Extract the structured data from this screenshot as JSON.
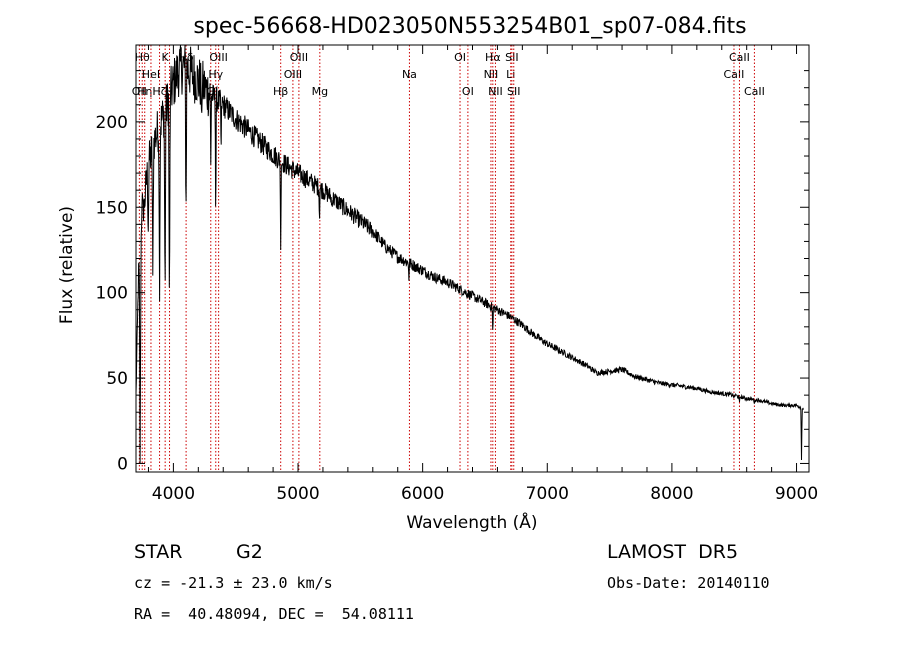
{
  "chart_data": {
    "type": "line",
    "title": "spec-56668-HD023050N553254B01_sp07-084.fits",
    "xlabel": "Wavelength (Å)",
    "ylabel": "Flux (relative)",
    "xlim": [
      3700,
      9100
    ],
    "ylim": [
      -5,
      245
    ],
    "x_ticks": [
      4000,
      5000,
      6000,
      7000,
      8000,
      9000
    ],
    "y_ticks": [
      0,
      50,
      100,
      150,
      200
    ],
    "grid": false,
    "line_color": "#000000",
    "marker_color": "#cc0000",
    "continuum": [
      [
        3700,
        40
      ],
      [
        3720,
        110
      ],
      [
        3760,
        150
      ],
      [
        3800,
        175
      ],
      [
        3850,
        190
      ],
      [
        3900,
        200
      ],
      [
        3950,
        210
      ],
      [
        4000,
        222
      ],
      [
        4050,
        232
      ],
      [
        4100,
        232
      ],
      [
        4150,
        228
      ],
      [
        4200,
        224
      ],
      [
        4250,
        220
      ],
      [
        4300,
        216
      ],
      [
        4400,
        210
      ],
      [
        4500,
        202
      ],
      [
        4600,
        195
      ],
      [
        4700,
        188
      ],
      [
        4800,
        181
      ],
      [
        4900,
        175
      ],
      [
        5000,
        170
      ],
      [
        5100,
        165
      ],
      [
        5200,
        160
      ],
      [
        5300,
        154
      ],
      [
        5400,
        148
      ],
      [
        5500,
        142
      ],
      [
        5600,
        136
      ],
      [
        5700,
        127
      ],
      [
        5800,
        121
      ],
      [
        5900,
        117
      ],
      [
        6000,
        113
      ],
      [
        6100,
        109
      ],
      [
        6200,
        106
      ],
      [
        6300,
        102
      ],
      [
        6400,
        98
      ],
      [
        6500,
        94
      ],
      [
        6600,
        90
      ],
      [
        6700,
        86
      ],
      [
        6800,
        81
      ],
      [
        6900,
        75
      ],
      [
        7000,
        70
      ],
      [
        7100,
        66
      ],
      [
        7200,
        62
      ],
      [
        7300,
        58
      ],
      [
        7400,
        53
      ],
      [
        7500,
        54
      ],
      [
        7600,
        55
      ],
      [
        7700,
        51
      ],
      [
        7800,
        49
      ],
      [
        7900,
        47
      ],
      [
        8000,
        46
      ],
      [
        8100,
        45
      ],
      [
        8200,
        44
      ],
      [
        8300,
        42
      ],
      [
        8400,
        41
      ],
      [
        8500,
        40
      ],
      [
        8600,
        38
      ],
      [
        8700,
        37
      ],
      [
        8800,
        35
      ],
      [
        8900,
        34
      ],
      [
        9000,
        34
      ],
      [
        9060,
        32
      ]
    ],
    "absorption_dips": [
      [
        3733,
        0
      ],
      [
        3750,
        160
      ],
      [
        3770,
        150
      ],
      [
        3798,
        130
      ],
      [
        3835,
        110
      ],
      [
        3889,
        95
      ],
      [
        3933,
        90
      ],
      [
        3968,
        85
      ],
      [
        4101,
        140
      ],
      [
        4226,
        200
      ],
      [
        4300,
        175
      ],
      [
        4340,
        135
      ],
      [
        4383,
        180
      ],
      [
        4861,
        125
      ],
      [
        5172,
        140
      ],
      [
        5270,
        150
      ],
      [
        5890,
        107
      ],
      [
        6563,
        75
      ],
      [
        8498,
        38
      ],
      [
        8542,
        36
      ],
      [
        8662,
        35
      ],
      [
        9040,
        2
      ]
    ],
    "line_markers": [
      {
        "wl": 3727,
        "label": "OII",
        "row": 3
      },
      {
        "wl": 3750,
        "label": "Hθ",
        "row": 1
      },
      {
        "wl": 3770,
        "label": "Hη",
        "row": 3
      },
      {
        "wl": 3820,
        "label": "HeI",
        "row": 2
      },
      {
        "wl": 3889,
        "label": "Hζ",
        "row": 3
      },
      {
        "wl": 3934,
        "label": "K",
        "row": 1
      },
      {
        "wl": 3969,
        "label": "H",
        "row": 3
      },
      {
        "wl": 4102,
        "label": "Hδ",
        "row": 1
      },
      {
        "wl": 4300,
        "label": "G",
        "row": 3
      },
      {
        "wl": 4340,
        "label": "Hγ",
        "row": 2
      },
      {
        "wl": 4363,
        "label": "OIII",
        "row": 1
      },
      {
        "wl": 4861,
        "label": "Hβ",
        "row": 3
      },
      {
        "wl": 4959,
        "label": "OIII",
        "row": 2
      },
      {
        "wl": 5007,
        "label": "OIII",
        "row": 1
      },
      {
        "wl": 5175,
        "label": "Mg",
        "row": 3
      },
      {
        "wl": 5894,
        "label": "Na",
        "row": 2
      },
      {
        "wl": 6300,
        "label": "OI",
        "row": 1
      },
      {
        "wl": 6363,
        "label": "OI",
        "row": 3
      },
      {
        "wl": 6548,
        "label": "NII",
        "row": 2
      },
      {
        "wl": 6563,
        "label": "Hα",
        "row": 1
      },
      {
        "wl": 6584,
        "label": "NII",
        "row": 3
      },
      {
        "wl": 6707,
        "label": "Li",
        "row": 2
      },
      {
        "wl": 6716,
        "label": "SII",
        "row": 1
      },
      {
        "wl": 6731,
        "label": "SII",
        "row": 3
      },
      {
        "wl": 8498,
        "label": "CaII",
        "row": 2
      },
      {
        "wl": 8542,
        "label": "CaII",
        "row": 1
      },
      {
        "wl": 8662,
        "label": "CaII",
        "row": 3
      }
    ]
  },
  "info": {
    "object_type": "STAR",
    "subclass": "G2",
    "survey": "LAMOST  DR5",
    "redshift": "cz = -21.3 ± 23.0 km/s",
    "obs_date": "Obs-Date: 20140110",
    "coords": "RA =  40.48094, DEC =  54.08111"
  }
}
